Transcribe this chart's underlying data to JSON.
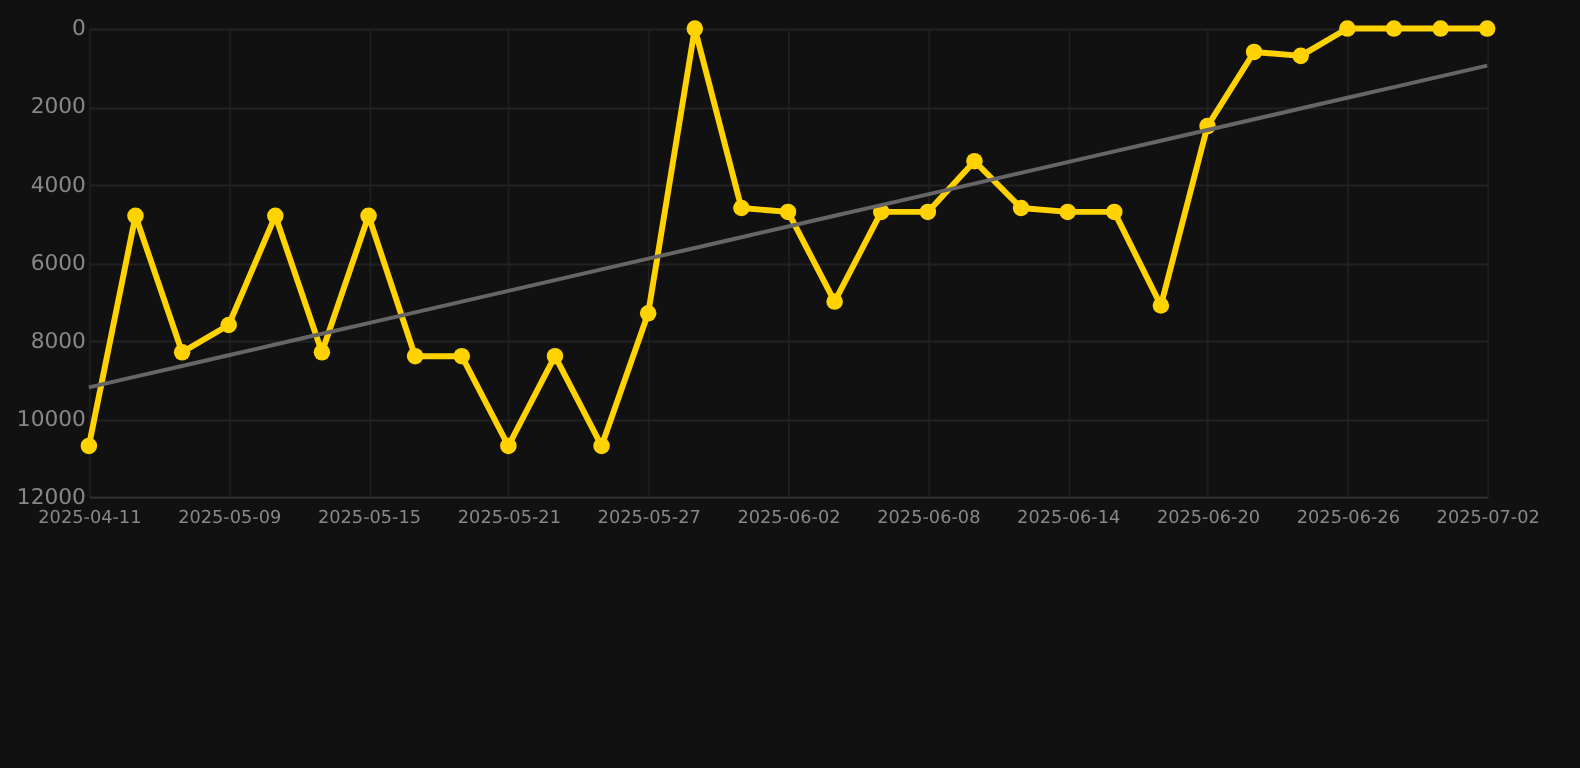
{
  "chart_data": {
    "type": "line",
    "categories": [
      "2025-04-11",
      null,
      null,
      "2025-05-09",
      null,
      null,
      "2025-05-15",
      null,
      null,
      "2025-05-21",
      null,
      null,
      "2025-05-27",
      null,
      null,
      "2025-06-02",
      null,
      null,
      "2025-06-08",
      null,
      null,
      "2025-06-14",
      null,
      null,
      "2025-06-20",
      null,
      null,
      "2025-06-26",
      null,
      null,
      "2025-07-02"
    ],
    "series": [
      {
        "color": "#ffd200",
        "marker": "circle",
        "values": [
          10700,
          4800,
          8300,
          7600,
          4800,
          8300,
          4800,
          8400,
          8400,
          10700,
          8400,
          10700,
          7300,
          0,
          4600,
          4700,
          7000,
          4700,
          4700,
          3400,
          4600,
          4700,
          4700,
          7100,
          2500,
          600,
          700,
          0,
          0,
          0,
          0
        ]
      },
      {
        "type": "line",
        "color": "#666666",
        "marker": "none",
        "values": [
          9200,
          8925,
          8650,
          8375,
          8100,
          7825,
          7550,
          7275,
          7000,
          6725,
          6450,
          6175,
          5900,
          5625,
          5350,
          5075,
          4800,
          4525,
          4250,
          3975,
          3700,
          3425,
          3150,
          2875,
          2600,
          2325,
          2050,
          1775,
          1500,
          1225,
          950
        ]
      }
    ],
    "ylim": [
      12000,
      0
    ],
    "yticks": [
      0,
      2000,
      4000,
      6000,
      8000,
      10000,
      12000
    ],
    "grid": true,
    "legend": false
  }
}
